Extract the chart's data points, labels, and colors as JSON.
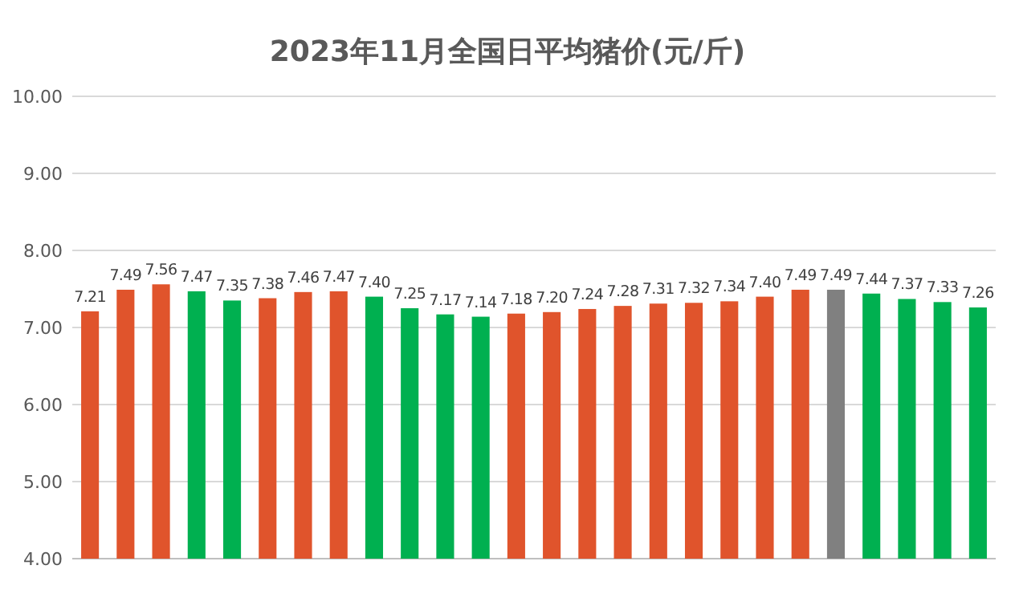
{
  "chart_data": {
    "type": "bar",
    "title": "2023年11月全国日平均猪价(元/斤)",
    "categories": [
      null,
      null,
      null,
      null,
      null,
      null,
      null,
      null,
      null,
      null,
      null,
      null,
      null,
      null,
      null,
      null,
      null,
      null,
      null,
      null,
      null,
      null,
      null,
      null,
      null,
      null
    ],
    "values": [
      7.21,
      7.49,
      7.56,
      7.47,
      7.35,
      7.38,
      7.46,
      7.47,
      7.4,
      7.25,
      7.17,
      7.14,
      7.18,
      7.2,
      7.24,
      7.28,
      7.31,
      7.32,
      7.34,
      7.4,
      7.49,
      7.49,
      7.44,
      7.37,
      7.33,
      7.26
    ],
    "value_labels": [
      "7.21",
      "7.49",
      "7.56",
      "7.47",
      "7.35",
      "7.38",
      "7.46",
      "7.47",
      "7.40",
      "7.25",
      "7.17",
      "7.14",
      "7.18",
      "7.20",
      "7.24",
      "7.28",
      "7.31",
      "7.32",
      "7.34",
      "7.40",
      "7.49",
      "7.49",
      "7.44",
      "7.37",
      "7.33",
      "7.26"
    ],
    "colors": [
      "#e0542c",
      "#e0542c",
      "#e0542c",
      "#00b050",
      "#00b050",
      "#e0542c",
      "#e0542c",
      "#e0542c",
      "#00b050",
      "#00b050",
      "#00b050",
      "#00b050",
      "#e0542c",
      "#e0542c",
      "#e0542c",
      "#e0542c",
      "#e0542c",
      "#e0542c",
      "#e0542c",
      "#e0542c",
      "#e0542c",
      "#808080",
      "#00b050",
      "#00b050",
      "#00b050",
      "#00b050"
    ],
    "ylim": [
      4,
      10
    ],
    "yticks": [
      {
        "value": 4,
        "label": "4.00"
      },
      {
        "value": 5,
        "label": "5.00"
      },
      {
        "value": 6,
        "label": "6.00"
      },
      {
        "value": 7,
        "label": "7.00"
      },
      {
        "value": 8,
        "label": "8.00"
      },
      {
        "value": 9,
        "label": "9.00"
      },
      {
        "value": 10,
        "label": "10.00"
      }
    ],
    "grid": "y"
  }
}
